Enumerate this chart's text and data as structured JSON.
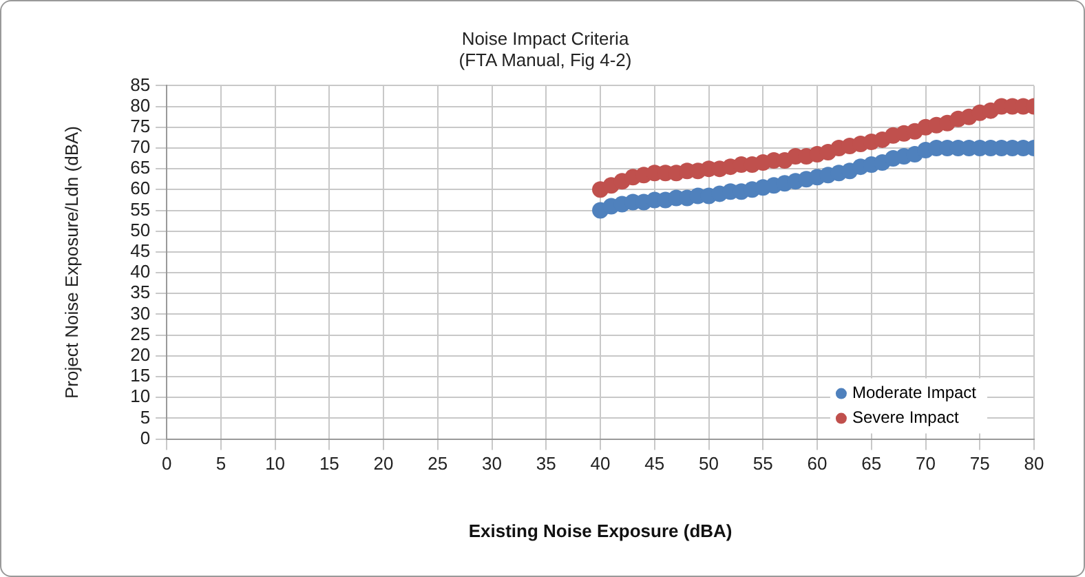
{
  "chart_data": {
    "type": "scatter",
    "title": "Noise Impact Criteria",
    "subtitle": "(FTA Manual, Fig 4-2)",
    "xlabel": "Existing Noise Exposure (dBA)",
    "ylabel": "Project Noise Exposure/Ldn (dBA)",
    "x": [
      40,
      41,
      42,
      43,
      44,
      45,
      46,
      47,
      48,
      49,
      50,
      51,
      52,
      53,
      54,
      55,
      56,
      57,
      58,
      59,
      60,
      61,
      62,
      63,
      64,
      65,
      66,
      67,
      68,
      69,
      70,
      71,
      72,
      73,
      74,
      75,
      76,
      77,
      78,
      79,
      80
    ],
    "series": [
      {
        "name": "Moderate Impact",
        "color": "#4f81bd",
        "values": [
          55,
          56,
          56.5,
          57,
          57,
          57.5,
          57.5,
          58,
          58,
          58.5,
          58.5,
          59,
          59.5,
          59.5,
          60,
          60.5,
          61,
          61.5,
          62,
          62.5,
          63,
          63.5,
          64,
          64.5,
          65.5,
          66,
          66.5,
          67.5,
          68,
          68.5,
          69.5,
          70,
          70,
          70,
          70,
          70,
          70,
          70,
          70,
          70,
          70
        ]
      },
      {
        "name": "Severe Impact",
        "color": "#c0504d",
        "values": [
          60,
          61,
          62,
          63,
          63.5,
          64,
          64,
          64,
          64.5,
          64.5,
          65,
          65,
          65.5,
          66,
          66,
          66.5,
          67,
          67,
          68,
          68,
          68.5,
          69,
          70,
          70.5,
          71,
          71.5,
          72,
          73,
          73.5,
          74,
          75,
          75.5,
          76,
          77,
          77.5,
          78.5,
          79,
          80,
          80,
          80,
          80
        ]
      }
    ],
    "xlim": [
      0,
      80
    ],
    "xticks": [
      0,
      5,
      10,
      15,
      20,
      25,
      30,
      35,
      40,
      45,
      50,
      55,
      60,
      65,
      70,
      75,
      80
    ],
    "ylim": [
      0,
      85
    ],
    "yticks": [
      0,
      5,
      10,
      15,
      20,
      25,
      30,
      35,
      40,
      45,
      50,
      55,
      60,
      65,
      70,
      75,
      80,
      85
    ],
    "grid": true,
    "legend": "bottom right",
    "marker": "circle"
  }
}
